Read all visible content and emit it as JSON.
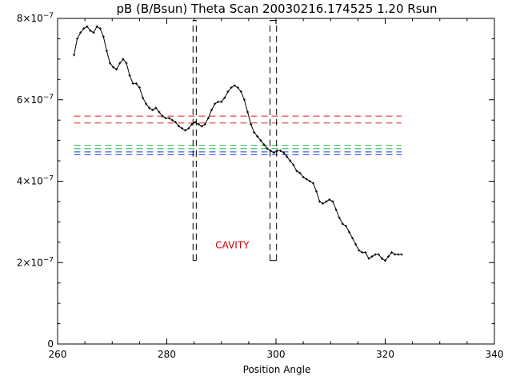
{
  "chart_data": {
    "type": "scatter",
    "title": "pB (B/Bsun) Theta Scan 20030216.174525 1.20 Rsun",
    "xlabel": "Position Angle",
    "ylabel": "",
    "xlim": [
      260,
      340
    ],
    "ylim": [
      0,
      8e-07
    ],
    "x_ticks": [
      260,
      280,
      300,
      320,
      340
    ],
    "x_tick_labels": [
      "260",
      "280",
      "300",
      "320",
      "340"
    ],
    "y_ticks": [
      0,
      2e-07,
      4e-07,
      6e-07,
      8e-07
    ],
    "y_tick_labels": [
      {
        "mant": "0",
        "exp": ""
      },
      {
        "mant": "2×10",
        "exp": "−7"
      },
      {
        "mant": "4×10",
        "exp": "−7"
      },
      {
        "mant": "6×10",
        "exp": "−7"
      },
      {
        "mant": "8×10",
        "exp": "−7"
      }
    ],
    "grid": false,
    "legend": "none",
    "series": [
      {
        "style": "points+line",
        "color": "#000000",
        "x": [
          263,
          263.6,
          264.2,
          264.8,
          265.4,
          266,
          266.6,
          267.2,
          267.8,
          268.4,
          269,
          269.6,
          270.2,
          270.8,
          271.4,
          272,
          272.6,
          273.2,
          273.8,
          274.4,
          275,
          275.6,
          276.2,
          276.8,
          277.4,
          278,
          278.6,
          279.2,
          279.8,
          280.4,
          281,
          281.6,
          282.2,
          282.8,
          283.4,
          284,
          284.6,
          285.2,
          285.8,
          286.4,
          287,
          287.6,
          288.2,
          288.8,
          289.4,
          290,
          290.6,
          291.2,
          291.8,
          292.4,
          293,
          293.6,
          294.2,
          294.8,
          295.4,
          296,
          296.6,
          297.2,
          297.8,
          298.4,
          299,
          299.6,
          300.2,
          300.8,
          301.4,
          302,
          302.6,
          303.2,
          303.8,
          304.4,
          305,
          305.6,
          306.2,
          306.8,
          307.4,
          308,
          308.6,
          309.2,
          309.8,
          310.4,
          311,
          311.6,
          312.2,
          312.8,
          313.4,
          314,
          314.6,
          315.2,
          315.8,
          316.4,
          317,
          317.6,
          318.2,
          318.8,
          319.4,
          320,
          320.6,
          321.2,
          321.8,
          322.4,
          323
        ],
        "y": [
          7.1e-07,
          7.5e-07,
          7.65e-07,
          7.75e-07,
          7.8e-07,
          7.7e-07,
          7.65e-07,
          7.8e-07,
          7.75e-07,
          7.55e-07,
          7.2e-07,
          6.9e-07,
          6.8e-07,
          6.75e-07,
          6.9e-07,
          7e-07,
          6.9e-07,
          6.6e-07,
          6.4e-07,
          6.4e-07,
          6.3e-07,
          6.05e-07,
          5.9e-07,
          5.8e-07,
          5.75e-07,
          5.8e-07,
          5.7e-07,
          5.6e-07,
          5.55e-07,
          5.55e-07,
          5.5e-07,
          5.45e-07,
          5.35e-07,
          5.3e-07,
          5.25e-07,
          5.3e-07,
          5.4e-07,
          5.45e-07,
          5.4e-07,
          5.35e-07,
          5.4e-07,
          5.55e-07,
          5.75e-07,
          5.9e-07,
          5.95e-07,
          5.95e-07,
          6.05e-07,
          6.2e-07,
          6.3e-07,
          6.35e-07,
          6.3e-07,
          6.2e-07,
          6e-07,
          5.7e-07,
          5.4e-07,
          5.2e-07,
          5.1e-07,
          5e-07,
          4.9e-07,
          4.8e-07,
          4.75e-07,
          4.7e-07,
          4.75e-07,
          4.75e-07,
          4.7e-07,
          4.6e-07,
          4.5e-07,
          4.4e-07,
          4.25e-07,
          4.2e-07,
          4.1e-07,
          4.05e-07,
          4e-07,
          3.95e-07,
          3.75e-07,
          3.5e-07,
          3.45e-07,
          3.5e-07,
          3.55e-07,
          3.5e-07,
          3.3e-07,
          3.1e-07,
          2.95e-07,
          2.9e-07,
          2.75e-07,
          2.6e-07,
          2.45e-07,
          2.3e-07,
          2.25e-07,
          2.25e-07,
          2.1e-07,
          2.15e-07,
          2.2e-07,
          2.2e-07,
          2.1e-07,
          2.05e-07,
          2.15e-07,
          2.25e-07,
          2.2e-07,
          2.2e-07,
          2.2e-07
        ]
      }
    ],
    "reference_lines": [
      {
        "type": "horizontal",
        "y": 5.6e-07,
        "x_range": [
          263,
          323
        ],
        "color": "#dd2020",
        "dash": true
      },
      {
        "type": "horizontal",
        "y": 5.43e-07,
        "x_range": [
          263,
          323
        ],
        "color": "#dd2020",
        "dash": true
      },
      {
        "type": "horizontal",
        "y": 4.88e-07,
        "x_range": [
          263,
          323
        ],
        "color": "#20b040",
        "dash": true
      },
      {
        "type": "horizontal",
        "y": 4.8e-07,
        "x_range": [
          263,
          323
        ],
        "color": "#20b040",
        "dash": true
      },
      {
        "type": "horizontal",
        "y": 4.72e-07,
        "x_range": [
          263,
          323
        ],
        "color": "#2040e0",
        "dash": true
      },
      {
        "type": "horizontal",
        "y": 4.65e-07,
        "x_range": [
          263,
          323
        ],
        "color": "#2040e0",
        "dash": true
      },
      {
        "type": "vertical",
        "x": 284.8,
        "y_range": [
          2.05e-07,
          7.95e-07
        ],
        "color": "#000000",
        "dash": true
      },
      {
        "type": "vertical",
        "x": 285.4,
        "y_range": [
          2.05e-07,
          7.95e-07
        ],
        "color": "#000000",
        "dash": true
      },
      {
        "type": "vertical",
        "x": 298.9,
        "y_range": [
          2.05e-07,
          7.95e-07
        ],
        "color": "#000000",
        "dash": true
      },
      {
        "type": "vertical",
        "x": 300.1,
        "y_range": [
          2.05e-07,
          7.95e-07
        ],
        "color": "#000000",
        "dash": true
      }
    ],
    "annotations": [
      {
        "text": "CAVITY",
        "x": 292,
        "y": 2.35e-07,
        "color": "#cc0000"
      }
    ]
  }
}
